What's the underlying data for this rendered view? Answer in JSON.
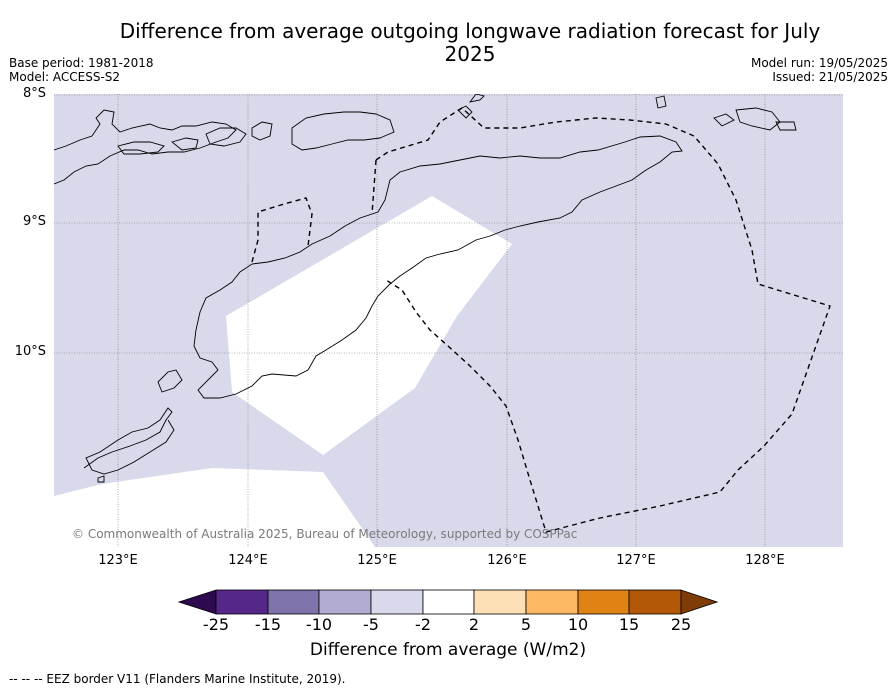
{
  "title": "Difference from average outgoing longwave radiation forecast for July 2025",
  "base_period": "Base period: 1981-2018",
  "model": "Model: ACCESS-S2",
  "model_run": "Model run: 19/05/2025",
  "issued": "Issued: 21/05/2025",
  "latitude_labels": [
    "8°S",
    "9°S",
    "10°S"
  ],
  "longitude_labels": [
    "123°E",
    "124°E",
    "125°E",
    "126°E",
    "127°E",
    "128°E"
  ],
  "copyright": "© Commonwealth of Australia 2025, Bureau of Meteorology, supported by COSPPac",
  "colorbar": {
    "ticks": [
      "-25",
      "-15",
      "-10",
      "-5",
      "-2",
      "2",
      "5",
      "10",
      "15",
      "25"
    ],
    "colors": [
      "#2d0a4e",
      "#542788",
      "#8073ac",
      "#b2abd2",
      "#d8daeb",
      "#ffffff",
      "#fee0b6",
      "#fdb863",
      "#e08214",
      "#b35806",
      "#7f3b08"
    ],
    "label": "Difference from average (W/m2)"
  },
  "map_colors": {
    "anomaly_fill": "#d8daeb",
    "neutral_fill": "#ffffff"
  },
  "footnote": "--  --  -- EEZ border V11 (Flanders Marine Institute, 2019)."
}
